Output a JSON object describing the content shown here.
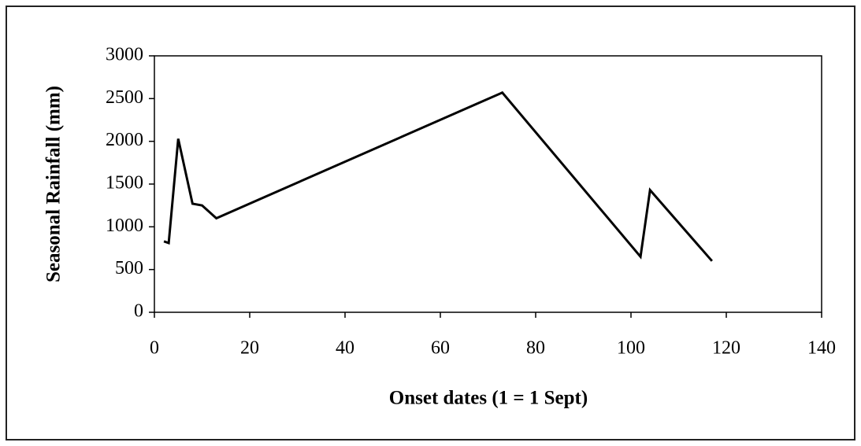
{
  "chart_data": {
    "type": "line",
    "x_label": "Onset dates (1 = 1 Sept)",
    "y_label": "Seasonal Rainfall (mm)",
    "x": [
      2,
      3,
      5,
      8,
      10,
      13,
      73,
      102,
      104,
      117
    ],
    "series": [
      {
        "color": "#000000",
        "values": [
          830,
          810,
          2030,
          1270,
          1250,
          1100,
          2570,
          650,
          1430,
          600
        ]
      }
    ],
    "xlim": [
      0,
      140
    ],
    "xticks": [
      0,
      20,
      40,
      60,
      80,
      100,
      120,
      140
    ],
    "ylim": [
      0,
      3000
    ],
    "yticks": [
      0,
      500,
      1000,
      1500,
      2000,
      2500,
      3000
    ],
    "grid": false
  }
}
